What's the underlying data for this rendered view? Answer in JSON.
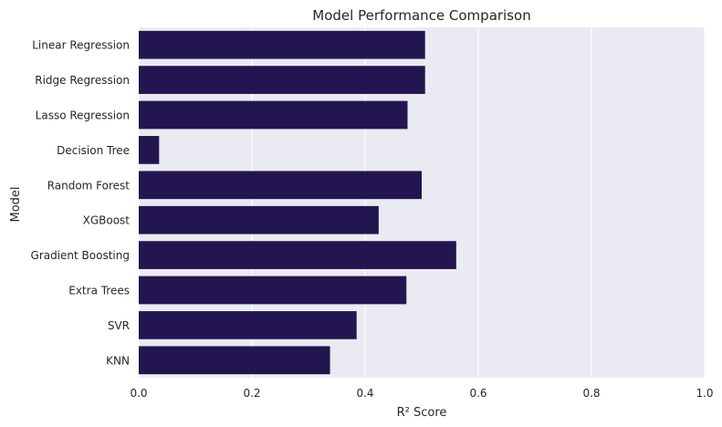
{
  "chart_data": {
    "type": "bar",
    "orientation": "horizontal",
    "title": "Model Performance Comparison",
    "xlabel": "R² Score",
    "ylabel": "Model",
    "xlim": [
      0,
      1.0
    ],
    "xticks": [
      "0.0",
      "0.2",
      "0.4",
      "0.6",
      "0.8",
      "1.0"
    ],
    "xtick_values": [
      0,
      0.2,
      0.4,
      0.6,
      0.8,
      1.0
    ],
    "grid": true,
    "categories": [
      "Linear Regression",
      "Ridge Regression",
      "Lasso Regression",
      "Decision Tree",
      "Random Forest",
      "XGBoost",
      "Gradient Boosting",
      "Extra Trees",
      "SVR",
      "KNN"
    ],
    "values": [
      0.506,
      0.506,
      0.475,
      0.036,
      0.5,
      0.424,
      0.561,
      0.473,
      0.385,
      0.338
    ],
    "bar_color": "#231650",
    "background_color": "#eaeaf2"
  }
}
